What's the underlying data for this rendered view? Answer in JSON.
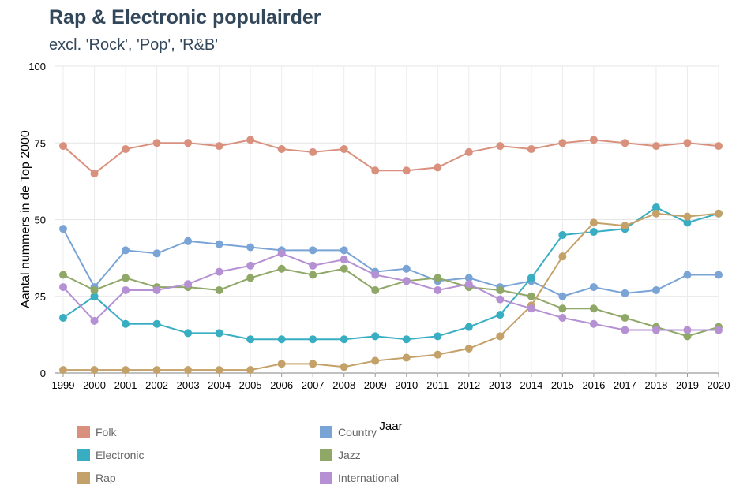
{
  "title": "Rap & Electronic populairder",
  "subtitle": "excl. 'Rock', 'Pop', 'R&B'",
  "chart_data": {
    "type": "line",
    "title": "Rap & Electronic populairder",
    "subtitle": "excl. 'Rock', 'Pop', 'R&B'",
    "xlabel": "Jaar",
    "ylabel": "Aantal nummers in de Top 2000",
    "ylim": [
      0,
      100
    ],
    "yticks": [
      0,
      25,
      50,
      75,
      100
    ],
    "categories": [
      "1999",
      "2000",
      "2001",
      "2002",
      "2003",
      "2004",
      "2005",
      "2006",
      "2007",
      "2008",
      "2009",
      "2010",
      "2011",
      "2012",
      "2013",
      "2014",
      "2015",
      "2016",
      "2017",
      "2018",
      "2019",
      "2020"
    ],
    "series": [
      {
        "name": "Folk",
        "color": "#d9917e",
        "values": [
          74,
          65,
          73,
          75,
          75,
          74,
          76,
          73,
          72,
          73,
          66,
          66,
          67,
          72,
          74,
          73,
          75,
          76,
          75,
          74,
          75,
          74
        ]
      },
      {
        "name": "Country",
        "color": "#79a4d5",
        "values": [
          47,
          28,
          40,
          39,
          43,
          42,
          41,
          40,
          40,
          40,
          33,
          34,
          30,
          31,
          28,
          30,
          25,
          28,
          26,
          27,
          32,
          32
        ]
      },
      {
        "name": "Electronic",
        "color": "#39aec3",
        "values": [
          18,
          25,
          16,
          16,
          13,
          13,
          11,
          11,
          11,
          11,
          12,
          11,
          12,
          15,
          19,
          31,
          45,
          46,
          47,
          54,
          49,
          52
        ]
      },
      {
        "name": "Jazz",
        "color": "#8fa867",
        "values": [
          32,
          27,
          31,
          28,
          28,
          27,
          31,
          34,
          32,
          34,
          27,
          30,
          31,
          28,
          27,
          25,
          21,
          21,
          18,
          15,
          12,
          15
        ]
      },
      {
        "name": "Rap",
        "color": "#c3a169",
        "values": [
          1,
          1,
          1,
          1,
          1,
          1,
          1,
          3,
          3,
          2,
          4,
          5,
          6,
          8,
          12,
          22,
          38,
          49,
          48,
          52,
          51,
          52
        ]
      },
      {
        "name": "International",
        "color": "#b591d3",
        "values": [
          28,
          17,
          27,
          27,
          29,
          33,
          35,
          39,
          35,
          37,
          32,
          30,
          27,
          29,
          24,
          21,
          18,
          16,
          14,
          14,
          14,
          14
        ]
      }
    ],
    "legend_position": "bottom",
    "grid": true
  },
  "legend": [
    {
      "name": "Folk",
      "color": "#d9917e"
    },
    {
      "name": "Country",
      "color": "#79a4d5"
    },
    {
      "name": "Electronic",
      "color": "#39aec3"
    },
    {
      "name": "Jazz",
      "color": "#8fa867"
    },
    {
      "name": "Rap",
      "color": "#c3a169"
    },
    {
      "name": "International",
      "color": "#b591d3"
    }
  ]
}
